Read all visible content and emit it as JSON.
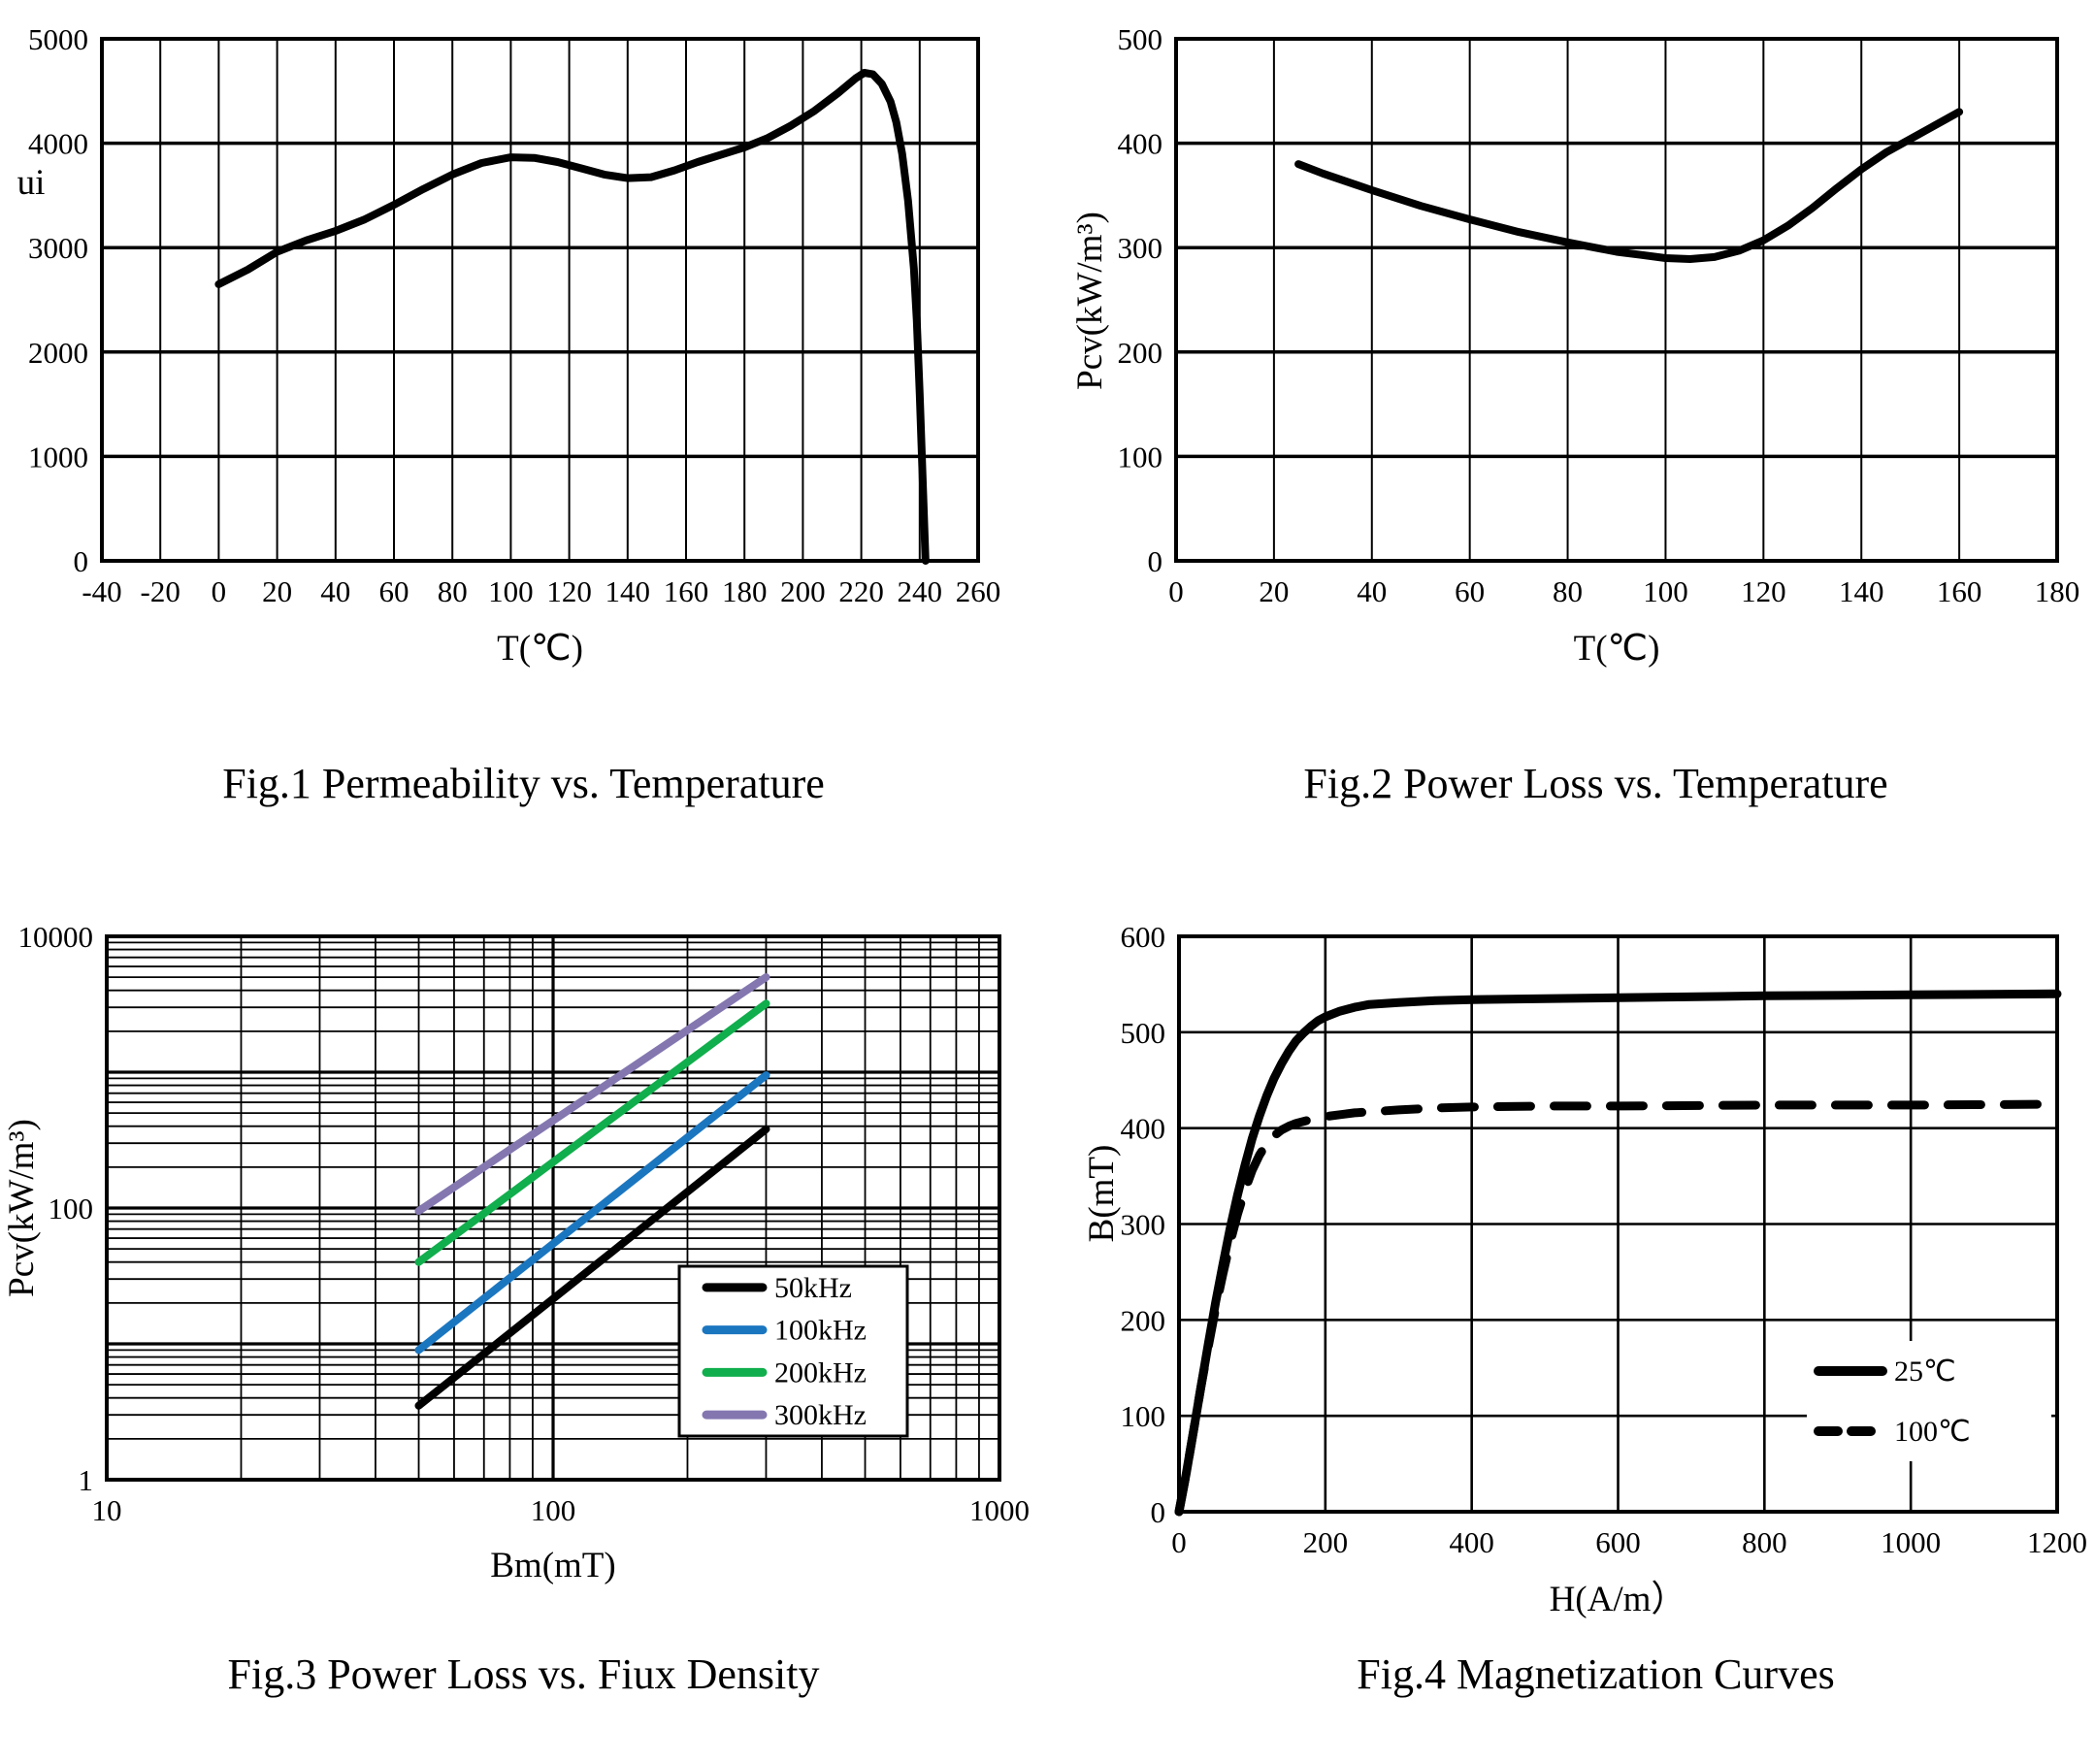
{
  "chart_data": [
    {
      "id": "fig1",
      "type": "line",
      "title": "Fig.1 Permeability vs. Temperature",
      "xlabel": "T(℃)",
      "ylabel": "ui",
      "x_scale": "linear",
      "y_scale": "linear",
      "xlim": [
        -40,
        260
      ],
      "ylim": [
        0,
        5000
      ],
      "xticks": [
        -40,
        -20,
        0,
        20,
        40,
        60,
        80,
        100,
        120,
        140,
        160,
        180,
        200,
        220,
        240,
        260
      ],
      "yticks": [
        0,
        1000,
        2000,
        3000,
        4000,
        5000
      ],
      "grid": "on",
      "legend": null,
      "series": [
        {
          "name": "ui",
          "color": "#000000",
          "width": 8,
          "dash": null,
          "points": [
            [
              0,
              2650
            ],
            [
              10,
              2790
            ],
            [
              20,
              2960
            ],
            [
              30,
              3070
            ],
            [
              40,
              3160
            ],
            [
              50,
              3270
            ],
            [
              60,
              3410
            ],
            [
              70,
              3560
            ],
            [
              80,
              3700
            ],
            [
              90,
              3810
            ],
            [
              100,
              3865
            ],
            [
              108,
              3860
            ],
            [
              116,
              3820
            ],
            [
              124,
              3760
            ],
            [
              132,
              3700
            ],
            [
              140,
              3665
            ],
            [
              148,
              3675
            ],
            [
              156,
              3740
            ],
            [
              164,
              3820
            ],
            [
              172,
              3890
            ],
            [
              180,
              3960
            ],
            [
              188,
              4050
            ],
            [
              196,
              4170
            ],
            [
              204,
              4310
            ],
            [
              212,
              4480
            ],
            [
              218,
              4620
            ],
            [
              221,
              4675
            ],
            [
              224,
              4660
            ],
            [
              227,
              4570
            ],
            [
              230,
              4400
            ],
            [
              232,
              4200
            ],
            [
              234,
              3900
            ],
            [
              236,
              3450
            ],
            [
              238,
              2800
            ],
            [
              239,
              2300
            ],
            [
              240,
              1600
            ],
            [
              241,
              800
            ],
            [
              242,
              0
            ]
          ]
        }
      ]
    },
    {
      "id": "fig2",
      "type": "line",
      "title": "Fig.2 Power Loss vs. Temperature",
      "xlabel": "T(℃)",
      "ylabel": "Pcv(kW/m³)",
      "x_scale": "linear",
      "y_scale": "linear",
      "xlim": [
        0,
        180
      ],
      "ylim": [
        0,
        500
      ],
      "xticks": [
        0,
        20,
        40,
        60,
        80,
        100,
        120,
        140,
        160,
        180
      ],
      "yticks": [
        0,
        100,
        200,
        300,
        400,
        500
      ],
      "grid": "on",
      "legend": null,
      "series": [
        {
          "name": "Pcv",
          "color": "#000000",
          "width": 8,
          "dash": null,
          "points": [
            [
              25,
              380
            ],
            [
              30,
              371
            ],
            [
              40,
              355
            ],
            [
              50,
              340
            ],
            [
              60,
              327
            ],
            [
              70,
              315
            ],
            [
              80,
              305
            ],
            [
              90,
              296
            ],
            [
              95,
              293
            ],
            [
              100,
              290
            ],
            [
              105,
              289
            ],
            [
              110,
              291
            ],
            [
              115,
              297
            ],
            [
              120,
              307
            ],
            [
              125,
              321
            ],
            [
              130,
              338
            ],
            [
              135,
              357
            ],
            [
              140,
              375
            ],
            [
              145,
              391
            ],
            [
              150,
              404
            ],
            [
              155,
              417
            ],
            [
              160,
              430
            ]
          ]
        }
      ]
    },
    {
      "id": "fig3",
      "type": "line",
      "title": "Fig.3 Power Loss vs. Fiux Density",
      "xlabel": "Bm(mT)",
      "ylabel": "Pcv(kW/m³)",
      "x_scale": "log",
      "y_scale": "log",
      "xlim": [
        10,
        1000
      ],
      "ylim": [
        1,
        10000
      ],
      "xticks": [
        10,
        100,
        1000
      ],
      "yticks": [
        1,
        100,
        10000
      ],
      "grid": "log-minor",
      "legend": {
        "position": "inside-lower-right",
        "items": [
          "50kHz",
          "100kHz",
          "200kHz",
          "300kHz"
        ]
      },
      "series": [
        {
          "name": "50kHz",
          "color": "#000000",
          "width": 8,
          "dash": null,
          "points": [
            [
              50,
              3.5
            ],
            [
              300,
              380
            ]
          ]
        },
        {
          "name": "100kHz",
          "color": "#1b76c0",
          "width": 8,
          "dash": null,
          "points": [
            [
              50,
              9
            ],
            [
              300,
              950
            ]
          ]
        },
        {
          "name": "200kHz",
          "color": "#10ae4c",
          "width": 8,
          "dash": null,
          "points": [
            [
              50,
              40
            ],
            [
              300,
              3200
            ]
          ]
        },
        {
          "name": "300kHz",
          "color": "#8477b0",
          "width": 8,
          "dash": null,
          "points": [
            [
              50,
              95
            ],
            [
              300,
              5000
            ]
          ]
        }
      ]
    },
    {
      "id": "fig4",
      "type": "line",
      "title": "Fig.4 Magnetization Curves",
      "xlabel": "H(A/m）",
      "ylabel": "B(mT)",
      "x_scale": "linear",
      "y_scale": "linear",
      "xlim": [
        0,
        1200
      ],
      "ylim": [
        0,
        600
      ],
      "xticks": [
        0,
        200,
        400,
        600,
        800,
        1000,
        1200
      ],
      "yticks": [
        0,
        100,
        200,
        300,
        400,
        500,
        600
      ],
      "grid": "on",
      "legend": {
        "position": "inside-lower-right",
        "items": [
          "25℃",
          "100℃"
        ]
      },
      "series": [
        {
          "name": "25℃",
          "color": "#000000",
          "width": 9,
          "dash": null,
          "points": [
            [
              0,
              0
            ],
            [
              10,
              40
            ],
            [
              20,
              85
            ],
            [
              30,
              130
            ],
            [
              40,
              175
            ],
            [
              50,
              218
            ],
            [
              60,
              258
            ],
            [
              70,
              296
            ],
            [
              80,
              330
            ],
            [
              90,
              361
            ],
            [
              100,
              389
            ],
            [
              110,
              413
            ],
            [
              120,
              434
            ],
            [
              130,
              452
            ],
            [
              140,
              467
            ],
            [
              150,
              480
            ],
            [
              160,
              491
            ],
            [
              170,
              499
            ],
            [
              180,
              506
            ],
            [
              190,
              512
            ],
            [
              200,
              516
            ],
            [
              220,
              522
            ],
            [
              240,
              526
            ],
            [
              260,
              529
            ],
            [
              280,
              530
            ],
            [
              300,
              531
            ],
            [
              350,
              533
            ],
            [
              400,
              534
            ],
            [
              500,
              535
            ],
            [
              600,
              536
            ],
            [
              800,
              538
            ],
            [
              1000,
              539
            ],
            [
              1200,
              540
            ]
          ]
        },
        {
          "name": "100℃",
          "color": "#000000",
          "width": 9,
          "dash": "34 24",
          "points": [
            [
              0,
              0
            ],
            [
              10,
              40
            ],
            [
              20,
              85
            ],
            [
              30,
              130
            ],
            [
              40,
              172
            ],
            [
              50,
              212
            ],
            [
              60,
              248
            ],
            [
              70,
              281
            ],
            [
              80,
              310
            ],
            [
              90,
              335
            ],
            [
              100,
              356
            ],
            [
              110,
              372
            ],
            [
              120,
              384
            ],
            [
              130,
              392
            ],
            [
              140,
              398
            ],
            [
              150,
              402
            ],
            [
              160,
              405
            ],
            [
              180,
              409
            ],
            [
              200,
              412
            ],
            [
              220,
              414
            ],
            [
              240,
              416
            ],
            [
              260,
              417
            ],
            [
              280,
              418
            ],
            [
              300,
              419
            ],
            [
              350,
              421
            ],
            [
              400,
              422
            ],
            [
              500,
              423
            ],
            [
              600,
              423
            ],
            [
              800,
              424
            ],
            [
              1000,
              424
            ],
            [
              1200,
              425
            ]
          ]
        }
      ]
    }
  ]
}
